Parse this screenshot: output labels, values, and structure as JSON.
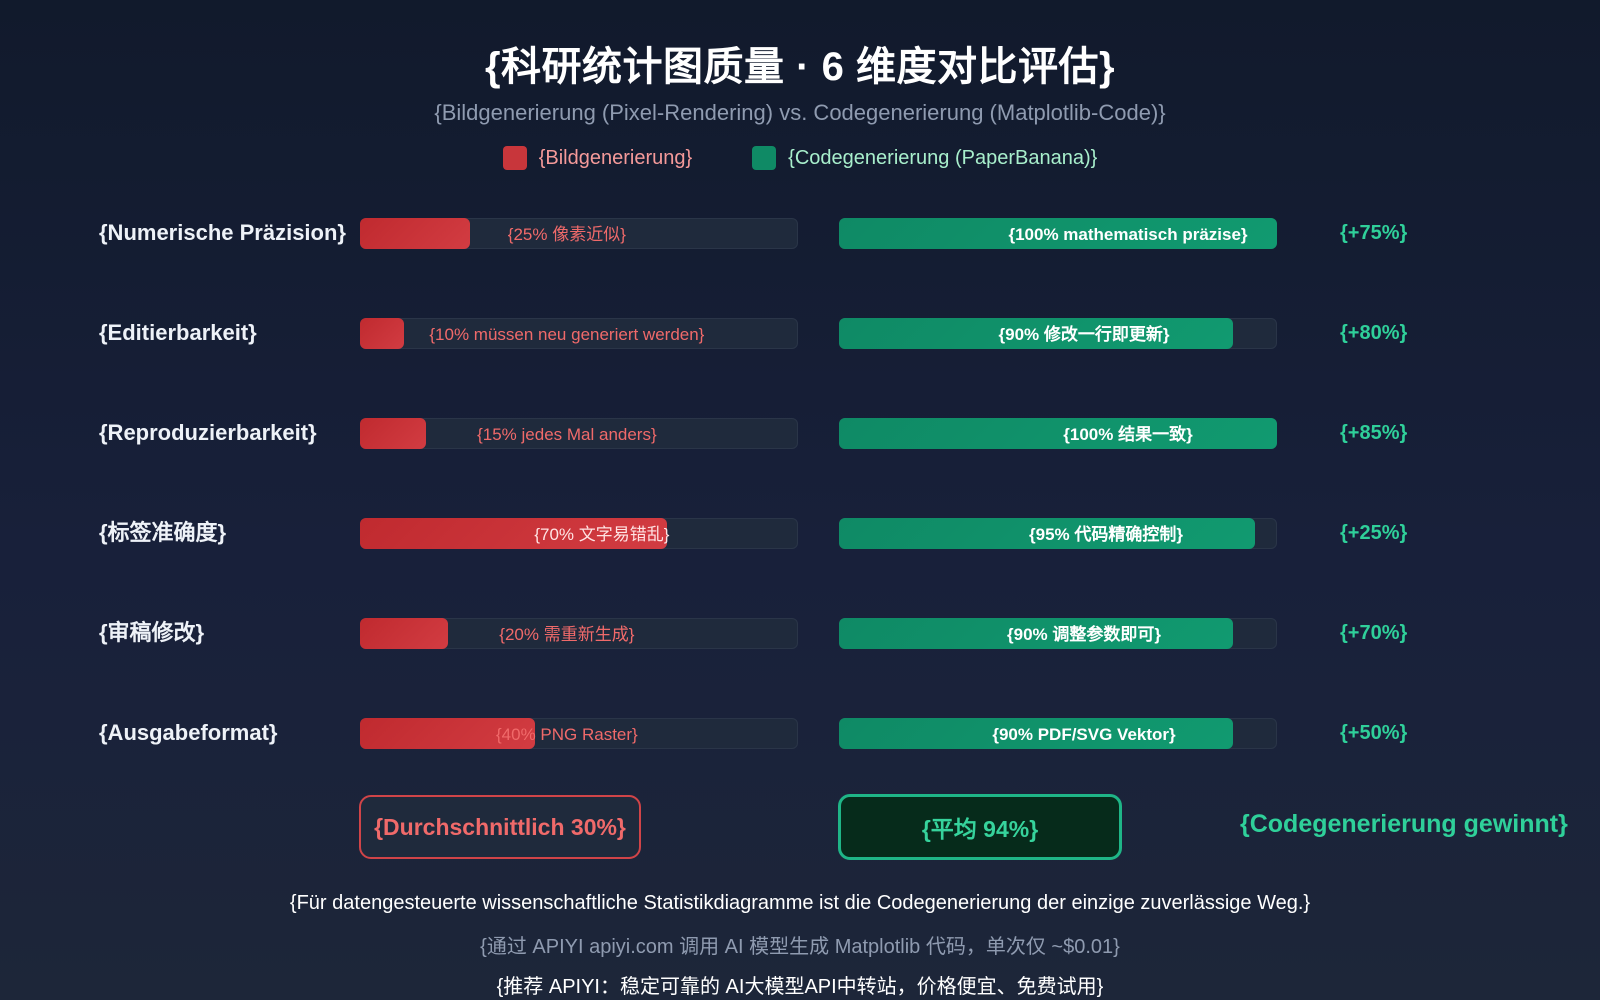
{
  "header": {
    "title": "{科研统计图质量 · 6 维度对比评估}",
    "subtitle": "{Bildgenerierung (Pixel-Rendering) vs. Codegenerierung (Matplotlib-Code)}"
  },
  "legend": {
    "image_gen": {
      "label": "{Bildgenerierung}",
      "color": "#c8363b",
      "text_color": "#f59a9a"
    },
    "code_gen": {
      "label": "{Codegenerierung (PaperBanana)}",
      "color": "#0f8a65",
      "text_color": "#a8efcc"
    }
  },
  "rows": [
    {
      "label": "{Numerische Präzision}",
      "red_value": 25,
      "red_text": "{25% 像素近似}",
      "green_value": 100,
      "green_text": "{100% mathematisch präzise}",
      "diff": "{+75%}"
    },
    {
      "label": "{Editierbarkeit}",
      "red_value": 10,
      "red_text": "{10% müssen neu generiert werden}",
      "green_value": 90,
      "green_text": "{90% 修改一行即更新}",
      "diff": "{+80%}"
    },
    {
      "label": "{Reproduzierbarkeit}",
      "red_value": 15,
      "red_text": "{15% jedes Mal anders}",
      "green_value": 100,
      "green_text": "{100% 结果一致}",
      "diff": "{+85%}"
    },
    {
      "label": "{标签准确度}",
      "red_value": 70,
      "red_text": "{70% 文字易错乱}",
      "green_value": 95,
      "green_text": "{95% 代码精确控制}",
      "diff": "{+25%}"
    },
    {
      "label": "{审稿修改}",
      "red_value": 20,
      "red_text": "{20% 需重新生成}",
      "green_value": 90,
      "green_text": "{90% 调整参数即可}",
      "diff": "{+70%}"
    },
    {
      "label": "{Ausgabeformat}",
      "red_value": 40,
      "red_text": "{40% PNG Raster}",
      "green_value": 90,
      "green_text": "{90% PDF/SVG Vektor}",
      "diff": "{+50%}"
    }
  ],
  "summary": {
    "image_gen_avg": "{Durchschnittlich 30%}",
    "code_gen_avg": "{平均 94%}",
    "winner": "{Codegenerierung gewinnt}"
  },
  "footer": {
    "line1": "{Für datengesteuerte wissenschaftliche Statistikdiagramme ist die Codegenerierung der einzige zuverlässige Weg.}",
    "line2": "{通过 APIYI apiyi.com 调用 AI 模型生成 Matplotlib 代码，单次仅 ~$0.01}",
    "line3": "{推荐 APIYI：稳定可靠的 AI大模型API中转站，价格便宜、免费试用}"
  },
  "chart_data": {
    "type": "bar",
    "orientation": "horizontal",
    "title": "{科研统计图质量 · 6 维度对比评估}",
    "subtitle": "{Bildgenerierung (Pixel-Rendering) vs. Codegenerierung (Matplotlib-Code)}",
    "categories": [
      "{Numerische Präzision}",
      "{Editierbarkeit}",
      "{Reproduzierbarkeit}",
      "{标签准确度}",
      "{审稿修改}",
      "{Ausgabeformat}"
    ],
    "series": [
      {
        "name": "{Bildgenerierung}",
        "values": [
          25,
          10,
          15,
          70,
          20,
          40
        ]
      },
      {
        "name": "{Codegenerierung (PaperBanana)}",
        "values": [
          100,
          90,
          100,
          95,
          90,
          90
        ]
      }
    ],
    "differences": [
      "+75%",
      "+80%",
      "+85%",
      "+25%",
      "+70%",
      "+50%"
    ],
    "averages": {
      "{Bildgenerierung}": 30,
      "{Codegenerierung (PaperBanana)}": 94
    },
    "xlim": [
      0,
      100
    ],
    "legend_position": "top",
    "grid": false
  }
}
